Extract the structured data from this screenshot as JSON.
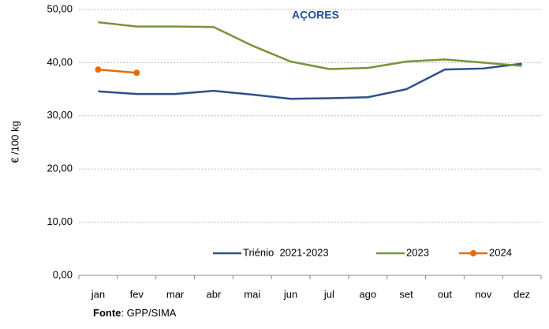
{
  "chart_data": {
    "type": "line",
    "title": "AÇORES",
    "y_label": "€ /100 kg",
    "source_label": "Fonte",
    "source": ": GPP/SIMA",
    "categories": [
      "jan",
      "fev",
      "mar",
      "abr",
      "mai",
      "jun",
      "jul",
      "ago",
      "set",
      "out",
      "nov",
      "dez"
    ],
    "series": [
      {
        "name": "Triénio  2021-2023",
        "color": "#2e4f8a",
        "values": [
          34.6,
          34.1,
          34.1,
          34.7,
          34.0,
          33.2,
          33.3,
          33.5,
          35.0,
          38.7,
          38.9,
          39.8
        ]
      },
      {
        "name": "2023",
        "color": "#77933c",
        "values": [
          47.6,
          46.8,
          46.8,
          46.7,
          43.2,
          40.2,
          38.8,
          39.0,
          40.2,
          40.6,
          40.0,
          39.4
        ]
      },
      {
        "name": "2024",
        "color": "#e46c0a",
        "markers": true,
        "values": [
          38.7,
          38.1,
          null,
          null,
          null,
          null,
          null,
          null,
          null,
          null,
          null,
          null
        ]
      }
    ],
    "ylim": [
      0,
      50
    ],
    "yticks": [
      {
        "value": 0,
        "label": "0,00"
      },
      {
        "value": 10,
        "label": "10,00"
      },
      {
        "value": 20,
        "label": "20,00"
      },
      {
        "value": 30,
        "label": "30,00"
      },
      {
        "value": 40,
        "label": "40,00"
      },
      {
        "value": 50,
        "label": "50,00"
      }
    ],
    "grid": true
  }
}
